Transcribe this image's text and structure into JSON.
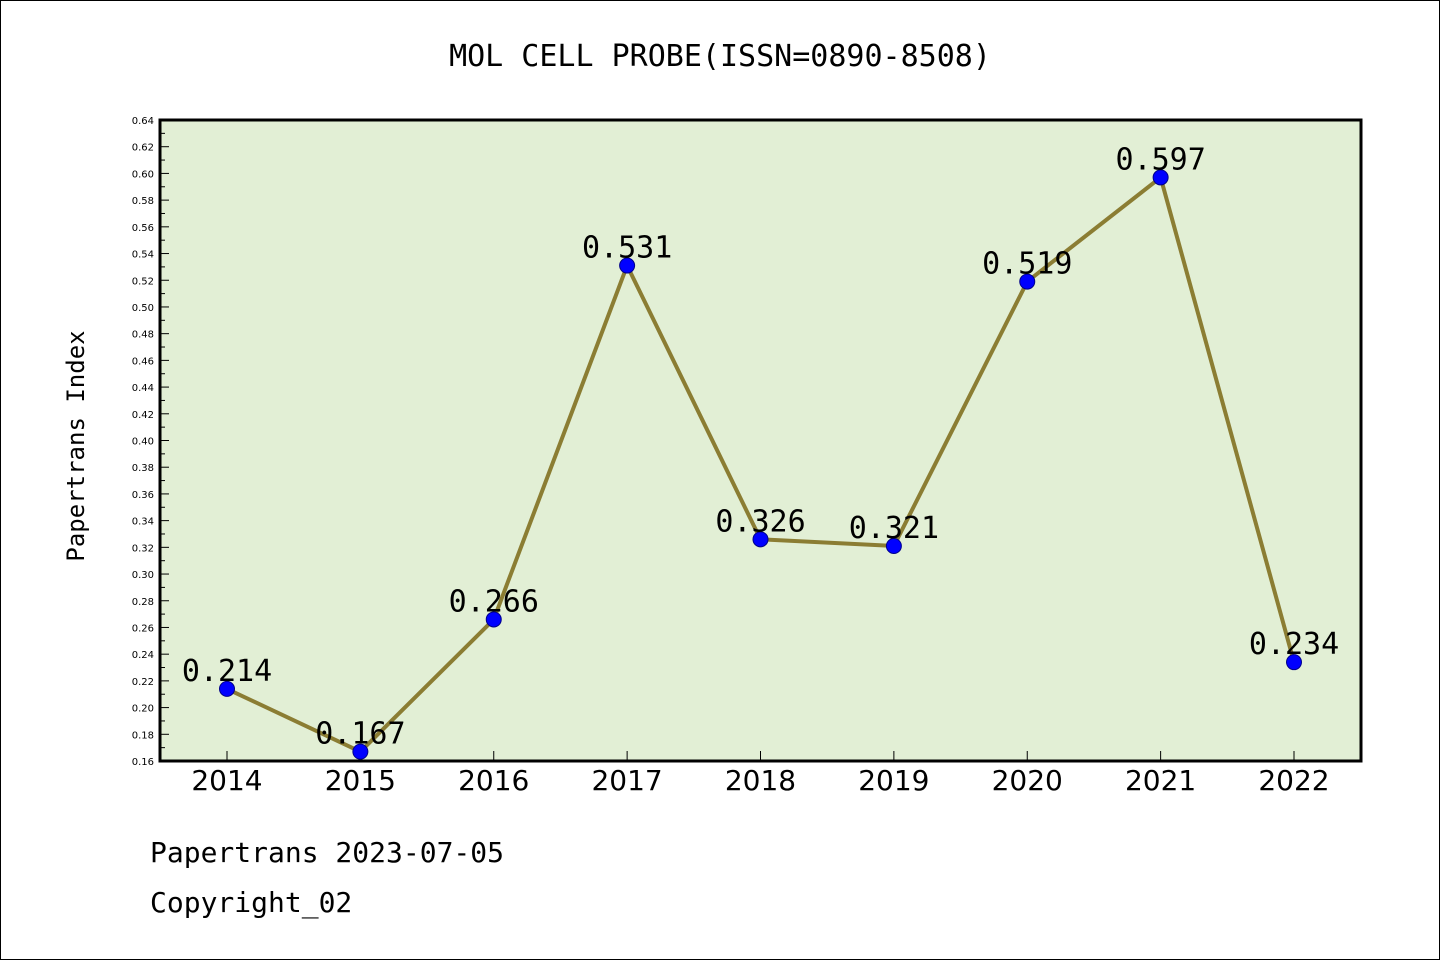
{
  "chart_data": {
    "type": "line",
    "title": "MOL CELL PROBE(ISSN=0890-8508)",
    "xlabel": "",
    "ylabel": "Papertrans Index",
    "categories": [
      "2014",
      "2015",
      "2016",
      "2017",
      "2018",
      "2019",
      "2020",
      "2021",
      "2022"
    ],
    "values": [
      0.214,
      0.167,
      0.266,
      0.531,
      0.326,
      0.321,
      0.519,
      0.597,
      0.234
    ],
    "data_labels": [
      "0.214",
      "0.167",
      "0.266",
      "0.531",
      "0.326",
      "0.321",
      "0.519",
      "0.597",
      "0.234"
    ],
    "ylim": [
      0.16,
      0.64
    ],
    "yticks": [
      "0.16",
      "0.18",
      "0.20",
      "0.22",
      "0.24",
      "0.26",
      "0.28",
      "0.30",
      "0.32",
      "0.34",
      "0.36",
      "0.38",
      "0.40",
      "0.42",
      "0.44",
      "0.46",
      "0.48",
      "0.50",
      "0.52",
      "0.54",
      "0.56",
      "0.58",
      "0.60",
      "0.62",
      "0.64"
    ],
    "grid": false,
    "colors": {
      "plot_background": "#e2efd5",
      "line": "#8b7d33",
      "marker": "#0000ff"
    }
  },
  "footer": {
    "date_line": "Papertrans 2023-07-05",
    "copyright": "Copyright_02"
  }
}
